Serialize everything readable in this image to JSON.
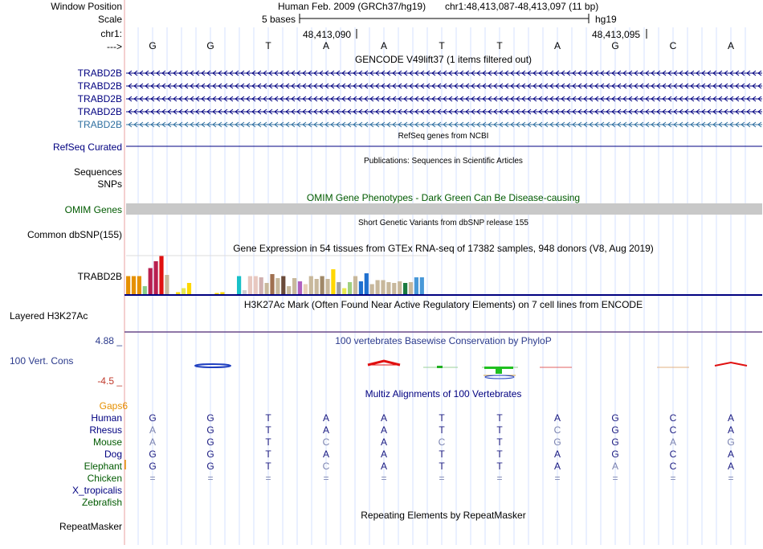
{
  "colors": {
    "navy": "#000080",
    "teal": "#2f6fa0",
    "darkgreen": "#005a00",
    "orange": "#e69000",
    "black": "#000000",
    "grid": "#c8d8ff",
    "omim_bar": "#c8c8c8",
    "phylop_text": "#2b3a8c",
    "conserved_base": "#1a1a80",
    "faded_base": "#7b83b0",
    "red_divider": "#e8a0a0"
  },
  "header": {
    "window_position_label": "Window Position",
    "scale_label": "Scale",
    "chrom_label": "chr1:",
    "strand_label": "--->",
    "assembly_title": "Human Feb. 2009 (GRCh37/hg19)",
    "position_range": "chr1:48,413,087-48,413,097 (11 bp)",
    "scale_text": "5 bases",
    "assembly_short": "hg19",
    "coord_1": "48,413,090",
    "coord_2": "48,413,095",
    "ruler_bases": [
      "G",
      "G",
      "T",
      "A",
      "A",
      "T",
      "T",
      "A",
      "G",
      "C",
      "A"
    ]
  },
  "gencode": {
    "title": "GENCODE V49lift37 (1 items filtered out)",
    "tracks": [
      {
        "label": "TRABD2B",
        "color": "#000080"
      },
      {
        "label": "TRABD2B",
        "color": "#000080"
      },
      {
        "label": "TRABD2B",
        "color": "#000080"
      },
      {
        "label": "TRABD2B",
        "color": "#000080"
      },
      {
        "label": "TRABD2B",
        "color": "#2f6fa0"
      }
    ]
  },
  "refseq": {
    "title": "RefSeq genes from NCBI",
    "label": "RefSeq Curated"
  },
  "publications": {
    "title": "Publications: Sequences in Scientific Articles",
    "label_1": "Sequences",
    "label_2": "SNPs"
  },
  "omim": {
    "title": "OMIM Gene Phenotypes - Dark Green Can Be Disease-causing",
    "label": "OMIM Genes"
  },
  "dbsnp": {
    "title": "Short Genetic Variants from dbSNP release 155",
    "label": "Common dbSNP(155)"
  },
  "gtex": {
    "title": "Gene Expression in 54 tissues from GTEx RNA-seq of 17382 samples, 948 donors (V8, Aug 2019)",
    "label": "TRABD2B",
    "values": [
      0.45,
      0.45,
      0.45,
      0.2,
      0.65,
      0.82,
      0.95,
      0.48,
      0.0,
      0.05,
      0.15,
      0.28,
      0.0,
      0.0,
      0.0,
      0.0,
      0.03,
      0.05,
      0.0,
      0.0,
      0.45,
      0.1,
      0.45,
      0.45,
      0.42,
      0.28,
      0.5,
      0.4,
      0.45,
      0.2,
      0.4,
      0.32,
      0.25,
      0.45,
      0.38,
      0.45,
      0.38,
      0.62,
      0.3,
      0.15,
      0.3,
      0.45,
      0.32,
      0.52,
      0.25,
      0.35,
      0.35,
      0.3,
      0.28,
      0.32,
      0.28,
      0.3,
      0.42,
      0.42
    ],
    "bar_colors": [
      "#e69000",
      "#e69000",
      "#e69000",
      "#88cc88",
      "#b82050",
      "#b82050",
      "#e01010",
      "#c8b89c",
      "#ffd700",
      "#ffd700",
      "#e8e850",
      "#ffd700",
      "#d0d0d0",
      "#d0d0d0",
      "#d0d0d0",
      "#d0d0d0",
      "#ffd700",
      "#ffd700",
      "#d0d0d0",
      "#d0d0d0",
      "#18c0c8",
      "#d0d0d0",
      "#e8c8c0",
      "#e8c8c0",
      "#d0b0b0",
      "#c8b89c",
      "#a07050",
      "#c8b89c",
      "#6a4a3a",
      "#c8b89c",
      "#c8b89c",
      "#b060c0",
      "#e8d0b8",
      "#c8b89c",
      "#c8b89c",
      "#a08868",
      "#c8b89c",
      "#ffd700",
      "#a0a0a0",
      "#e8e850",
      "#a0d080",
      "#c8b89c",
      "#1f70d0",
      "#1f70d0",
      "#c8b89c",
      "#c8b89c",
      "#c8b89c",
      "#c8b89c",
      "#c8b89c",
      "#c8b89c",
      "#1a7a40",
      "#c8b89c",
      "#4898d8",
      "#4898d8"
    ]
  },
  "h3k27ac": {
    "title": "H3K27Ac Mark (Often Found Near Active Regulatory Elements) on 7 cell lines from ENCODE",
    "label": "Layered H3K27Ac"
  },
  "phylop": {
    "title": "100 vertebrates Basewise Conservation by PhyloP",
    "label": "100 Vert. Cons",
    "max": "4.88 _",
    "min": "-4.5 _"
  },
  "multiz": {
    "title": "Multiz Alignments of 100 Vertebrates",
    "gaps_label": "Gaps6",
    "species": [
      {
        "name": "Human",
        "bases": [
          "G",
          "G",
          "T",
          "A",
          "A",
          "T",
          "T",
          "A",
          "G",
          "C",
          "A"
        ],
        "faded": [
          false,
          false,
          false,
          false,
          false,
          false,
          false,
          false,
          false,
          false,
          false
        ]
      },
      {
        "name": "Rhesus",
        "bases": [
          "A",
          "G",
          "T",
          "A",
          "A",
          "T",
          "T",
          "C",
          "G",
          "C",
          "A"
        ],
        "faded": [
          true,
          false,
          false,
          false,
          false,
          false,
          false,
          true,
          false,
          false,
          false
        ]
      },
      {
        "name": "Mouse",
        "bases": [
          "A",
          "G",
          "T",
          "C",
          "A",
          "C",
          "T",
          "G",
          "G",
          "A",
          "G"
        ],
        "faded": [
          true,
          false,
          false,
          true,
          false,
          true,
          false,
          true,
          false,
          true,
          true
        ]
      },
      {
        "name": "Dog",
        "bases": [
          "G",
          "G",
          "T",
          "A",
          "A",
          "T",
          "T",
          "A",
          "G",
          "C",
          "A"
        ],
        "faded": [
          false,
          false,
          false,
          false,
          false,
          false,
          false,
          false,
          false,
          false,
          false
        ]
      },
      {
        "name": "Elephant",
        "bases": [
          "G",
          "G",
          "T",
          "C",
          "A",
          "T",
          "T",
          "A",
          "A",
          "C",
          "A"
        ],
        "faded": [
          false,
          false,
          false,
          true,
          false,
          false,
          false,
          false,
          true,
          false,
          false
        ]
      },
      {
        "name": "Chicken",
        "bases": [
          "=",
          "=",
          "=",
          "=",
          "=",
          "=",
          "=",
          "=",
          "=",
          "=",
          "="
        ],
        "faded": [
          true,
          true,
          true,
          true,
          true,
          true,
          true,
          true,
          true,
          true,
          true
        ]
      },
      {
        "name": "X_tropicalis",
        "bases": [],
        "faded": []
      },
      {
        "name": "Zebrafish",
        "bases": [],
        "faded": []
      }
    ]
  },
  "repeatmasker": {
    "title": "Repeating Elements by RepeatMasker",
    "label": "RepeatMasker"
  }
}
